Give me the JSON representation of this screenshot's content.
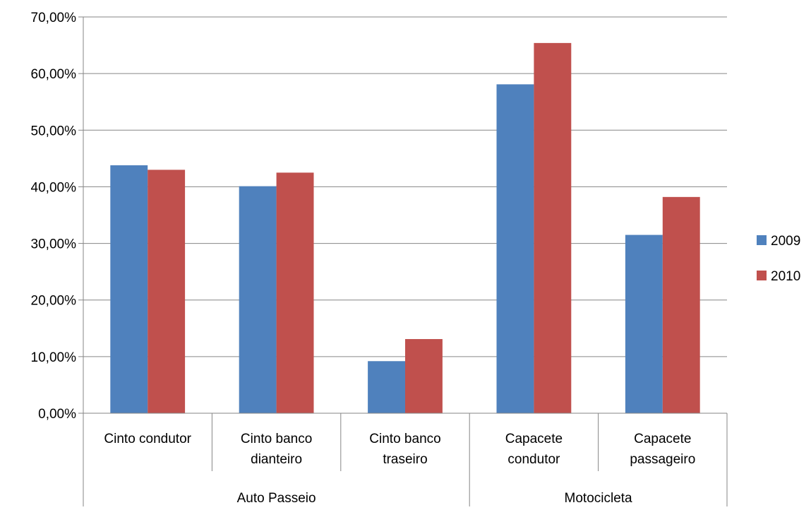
{
  "chart_data": {
    "type": "bar",
    "title": "",
    "xlabel": "",
    "ylabel": "",
    "ylim": [
      0,
      70
    ],
    "y_tick_labels": [
      "0,00%",
      "10,00%",
      "20,00%",
      "30,00%",
      "40,00%",
      "50,00%",
      "60,00%",
      "70,00%"
    ],
    "y_ticks": [
      0,
      10,
      20,
      30,
      40,
      50,
      60,
      70
    ],
    "grid": true,
    "legend_position": "right",
    "groups": [
      {
        "label": "Auto Passeio",
        "categories": [
          "Cinto condutor",
          "Cinto banco dianteiro",
          "Cinto banco traseiro"
        ]
      },
      {
        "label": "Motocicleta",
        "categories": [
          "Capacete condutor",
          "Capacete passageiro"
        ]
      }
    ],
    "categories": [
      [
        "Cinto condutor"
      ],
      [
        "Cinto banco",
        "dianteiro"
      ],
      [
        "Cinto banco",
        "traseiro"
      ],
      [
        "Capacete",
        "condutor"
      ],
      [
        "Capacete",
        "passageiro"
      ]
    ],
    "series": [
      {
        "name": "2009",
        "color": "#4F81BD",
        "values": [
          43.8,
          40.1,
          9.2,
          58.1,
          31.5
        ]
      },
      {
        "name": "2010",
        "color": "#C0504D",
        "values": [
          43.0,
          42.5,
          13.1,
          65.4,
          38.2
        ]
      }
    ]
  }
}
